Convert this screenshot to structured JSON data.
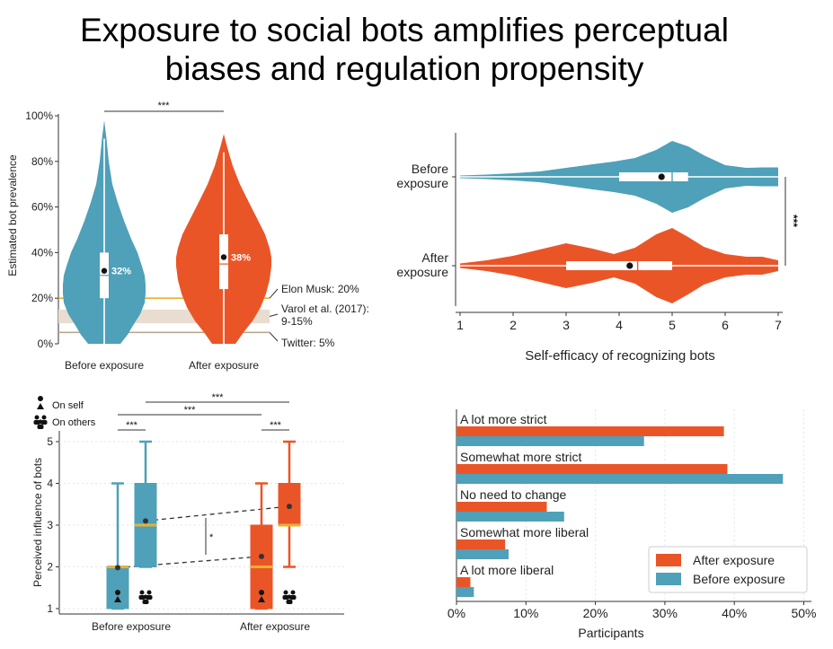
{
  "title": [
    "Exposure to social bots amplifies perceptual",
    "biases and regulation propensity"
  ],
  "colors": {
    "blue": "#4fa0b9",
    "orange": "#ea5528",
    "gold": "#e8b22c",
    "band": "#e8ddd0",
    "grid": "#e6e6e6"
  },
  "chart_data": [
    {
      "type": "violin",
      "ylabel": "Estimated bot prevalence",
      "ylim": [
        0,
        100
      ],
      "yticks": [
        "0%",
        "20%",
        "40%",
        "60%",
        "80%",
        "100%"
      ],
      "categories": [
        "Before exposure",
        "After exposure"
      ],
      "medians": [
        30,
        35
      ],
      "means": [
        32,
        38
      ],
      "mean_labels": [
        "32%",
        "38%"
      ],
      "q1": [
        20,
        24
      ],
      "q3": [
        40,
        48
      ],
      "max": [
        98,
        92
      ],
      "significance": "***",
      "reference_lines": [
        {
          "label": "Elon Musk: 20%",
          "value": 20
        },
        {
          "label": "Twitter: 5%",
          "value": 5
        }
      ],
      "reference_band": {
        "label_line1": "Varol et al. (2017):",
        "label_line2": "9-15%",
        "range": [
          9,
          15
        ]
      }
    },
    {
      "type": "violin",
      "orientation": "horizontal",
      "xlabel": "Self-efficacy of recognizing bots",
      "xlim": [
        1,
        7
      ],
      "xticks": [
        "1",
        "2",
        "3",
        "4",
        "5",
        "6",
        "7"
      ],
      "categories": [
        {
          "line1": "Before",
          "line2": "exposure"
        },
        {
          "line1": "After",
          "line2": "exposure"
        }
      ],
      "medians": [
        5,
        4.35
      ],
      "means": [
        4.8,
        4.2
      ],
      "q1": [
        4,
        3
      ],
      "q3": [
        5.3,
        5
      ],
      "significance": "***"
    },
    {
      "type": "box",
      "ylabel": "Perceived influence of bots",
      "ylim": [
        1,
        5
      ],
      "yticks": [
        "1",
        "2",
        "3",
        "4",
        "5"
      ],
      "categories": [
        "Before exposure",
        "After exposure"
      ],
      "legend": [
        {
          "label": "On self"
        },
        {
          "label": "On others"
        }
      ],
      "boxes": [
        {
          "group": "Before exposure",
          "target": "self",
          "min": 1,
          "q1": 1,
          "median": 2,
          "q3": 2,
          "max": 4,
          "mean": 1.98
        },
        {
          "group": "Before exposure",
          "target": "others",
          "min": 2,
          "q1": 2,
          "median": 3,
          "q3": 4,
          "max": 5,
          "mean": 3.1
        },
        {
          "group": "After exposure",
          "target": "self",
          "min": 1,
          "q1": 1,
          "median": 2,
          "q3": 3,
          "max": 4,
          "mean": 2.25
        },
        {
          "group": "After exposure",
          "target": "others",
          "min": 2,
          "q1": 3,
          "median": 3,
          "q3": 4,
          "max": 5,
          "mean": 3.45
        }
      ],
      "significance_marks": [
        "***",
        "***",
        "***",
        "***",
        "*"
      ]
    },
    {
      "type": "bar",
      "orientation": "horizontal",
      "xlabel": "Participants",
      "xlim": [
        0,
        50
      ],
      "xticks": [
        "0%",
        "10%",
        "20%",
        "30%",
        "40%",
        "50%"
      ],
      "categories": [
        "A lot more strict",
        "Somewhat more strict",
        "No need to change",
        "Somewhat more liberal",
        "A lot more liberal"
      ],
      "series": [
        {
          "name": "After exposure",
          "values": [
            38.5,
            39,
            13,
            7,
            2
          ]
        },
        {
          "name": "Before exposure",
          "values": [
            27,
            47,
            15.5,
            7.5,
            2.5
          ]
        }
      ],
      "legend": [
        "After exposure",
        "Before exposure"
      ]
    }
  ]
}
